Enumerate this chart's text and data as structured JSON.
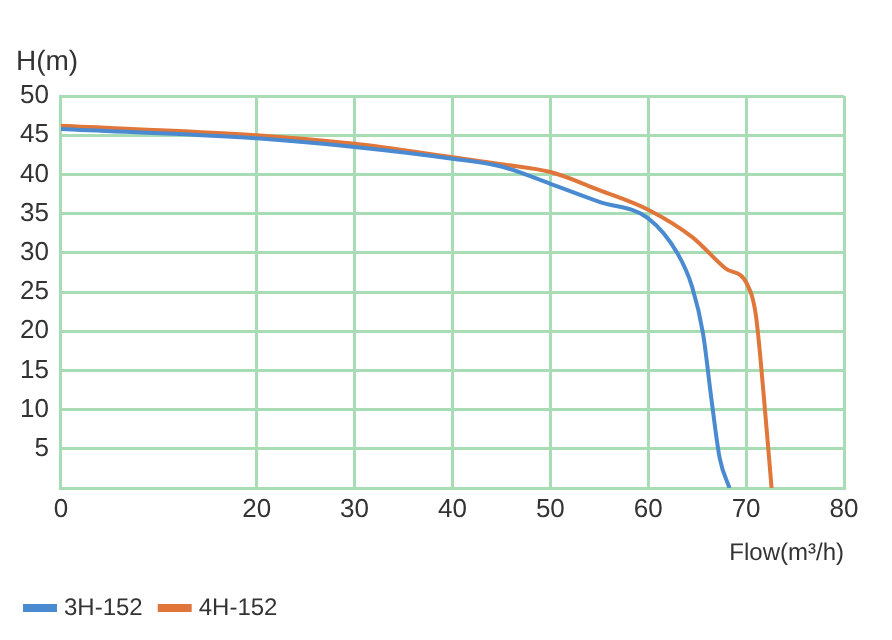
{
  "chart_data": {
    "type": "line",
    "xlabel": "Flow(m³/h)",
    "ylabel": "H(m)",
    "xlim": [
      0,
      80
    ],
    "xticks": [
      0,
      20,
      30,
      40,
      50,
      60,
      70,
      80
    ],
    "ylim": [
      0,
      50
    ],
    "yticks": [
      {
        "value": 0,
        "label": null
      },
      5,
      10,
      15,
      20,
      25,
      30,
      35,
      40,
      45,
      50
    ],
    "grid": true,
    "legend": "bottom left",
    "marker": "none",
    "line_style": "solid",
    "series": [
      {
        "name": "3H-152",
        "color": "#4a8ad0",
        "x": [
          0,
          20,
          30,
          40,
          45,
          50,
          55,
          60,
          63,
          64.5,
          65.6,
          66.5,
          67.3,
          68.3
        ],
        "values": [
          45.8,
          44.6,
          43.5,
          42,
          41,
          38.8,
          36.5,
          34.4,
          29.9,
          25.6,
          19.7,
          10.9,
          3.8,
          0
        ]
      },
      {
        "name": "4H-152",
        "color": "#e0763a",
        "x": [
          0,
          20,
          30,
          40,
          45,
          50,
          55,
          60,
          64.5,
          67.9,
          70.1,
          71,
          71.8,
          72.6
        ],
        "values": [
          46.2,
          45,
          43.9,
          42.2,
          41.3,
          40.3,
          38,
          35.5,
          32,
          28,
          26,
          22,
          11.8,
          0
        ]
      }
    ]
  }
}
